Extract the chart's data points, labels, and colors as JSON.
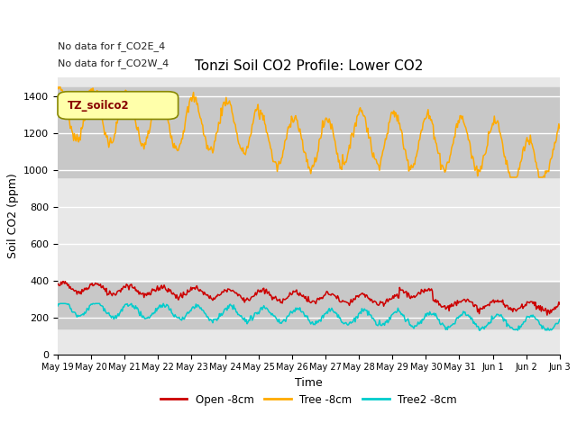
{
  "title": "Tonzi Soil CO2 Profile: Lower CO2",
  "ylabel": "Soil CO2 (ppm)",
  "xlabel": "Time",
  "annotation_lines": [
    "No data for f_CO2E_4",
    "No data for f_CO2W_4"
  ],
  "legend_label": "TZ_soilco2",
  "legend_entries": [
    "Open -8cm",
    "Tree -8cm",
    "Tree2 -8cm"
  ],
  "legend_colors": [
    "#cc0000",
    "#ffaa00",
    "#00cccc"
  ],
  "line_colors": {
    "open": "#cc0000",
    "tree": "#ffaa00",
    "tree2": "#00cccc"
  },
  "yticks": [
    0,
    200,
    400,
    600,
    800,
    1000,
    1200,
    1400
  ],
  "ylim": [
    0,
    1500
  ],
  "xtick_labels": [
    "May 19",
    "May 20",
    "May 21",
    "May 22",
    "May 23",
    "May 24",
    "May 25",
    "May 26",
    "May 27",
    "May 28",
    "May 29",
    "May 30",
    "May 31",
    "Jun 1",
    "Jun 2",
    "Jun 3"
  ],
  "bg_color": "#e8e8e8",
  "fig_bg_color": "#ffffff",
  "shaded_band_upper_min": 960,
  "shaded_band_upper_max": 1450,
  "shaded_band_lower_min": 140,
  "shaded_band_lower_max": 390,
  "shaded_color": "#c8c8c8",
  "legend_box_color": "#ffffaa",
  "legend_box_edge": "#888800",
  "n_points": 600
}
